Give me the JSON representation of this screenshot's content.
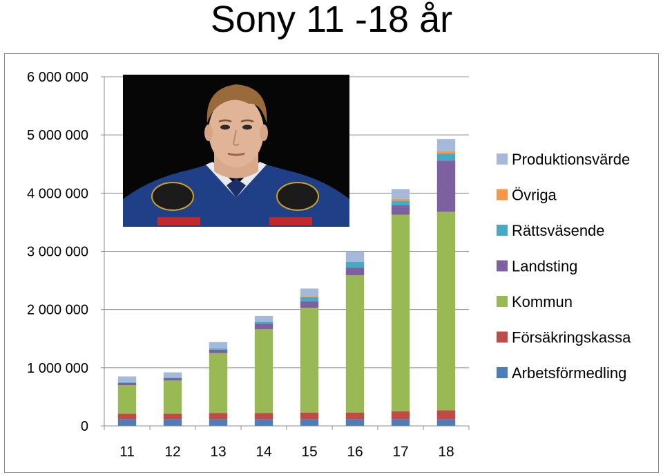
{
  "slide": {
    "title": "Sony 11 -18 år"
  },
  "chart_data": {
    "type": "bar",
    "stacked": true,
    "title": "",
    "xlabel": "",
    "ylabel": "",
    "categories": [
      "11",
      "12",
      "13",
      "14",
      "15",
      "16",
      "17",
      "18"
    ],
    "ylim": [
      0,
      6000000
    ],
    "yticks": [
      {
        "value": 0,
        "label": "0"
      },
      {
        "value": 1000000,
        "label": "1 000 000"
      },
      {
        "value": 2000000,
        "label": "2 000 000"
      },
      {
        "value": 3000000,
        "label": "3 000 000"
      },
      {
        "value": 4000000,
        "label": "4 000 000"
      },
      {
        "value": 5000000,
        "label": "5 000 000"
      },
      {
        "value": 6000000,
        "label": "6 000 000"
      }
    ],
    "grid": true,
    "legend_position": "right",
    "series": [
      {
        "name": "Arbetsförmedling",
        "color": "#4a7ebb",
        "values": [
          110000,
          110000,
          110000,
          110000,
          110000,
          110000,
          110000,
          110000
        ]
      },
      {
        "name": "Försäkringskassa",
        "color": "#be4b48",
        "values": [
          100000,
          100000,
          110000,
          110000,
          120000,
          120000,
          140000,
          160000
        ]
      },
      {
        "name": "Kommun",
        "color": "#98b954",
        "values": [
          490000,
          570000,
          1030000,
          1440000,
          1800000,
          2360000,
          3380000,
          3410000
        ]
      },
      {
        "name": "Landsting",
        "color": "#7d60a0",
        "values": [
          40000,
          40000,
          60000,
          100000,
          110000,
          130000,
          160000,
          880000
        ]
      },
      {
        "name": "Rättsväsende",
        "color": "#46aac5",
        "values": [
          10000,
          10000,
          20000,
          30000,
          70000,
          100000,
          80000,
          120000
        ]
      },
      {
        "name": "Övriga",
        "color": "#f79646",
        "values": [
          0,
          0,
          0,
          0,
          20000,
          0,
          30000,
          40000
        ]
      },
      {
        "name": "Produktionsvärde",
        "color": "#a5b9db",
        "values": [
          100000,
          90000,
          110000,
          100000,
          130000,
          180000,
          170000,
          210000
        ]
      }
    ],
    "legend_order": [
      "Produktionsvärde",
      "Övriga",
      "Rättsväsende",
      "Landsting",
      "Kommun",
      "Försäkringskassa",
      "Arbetsförmedling"
    ]
  }
}
